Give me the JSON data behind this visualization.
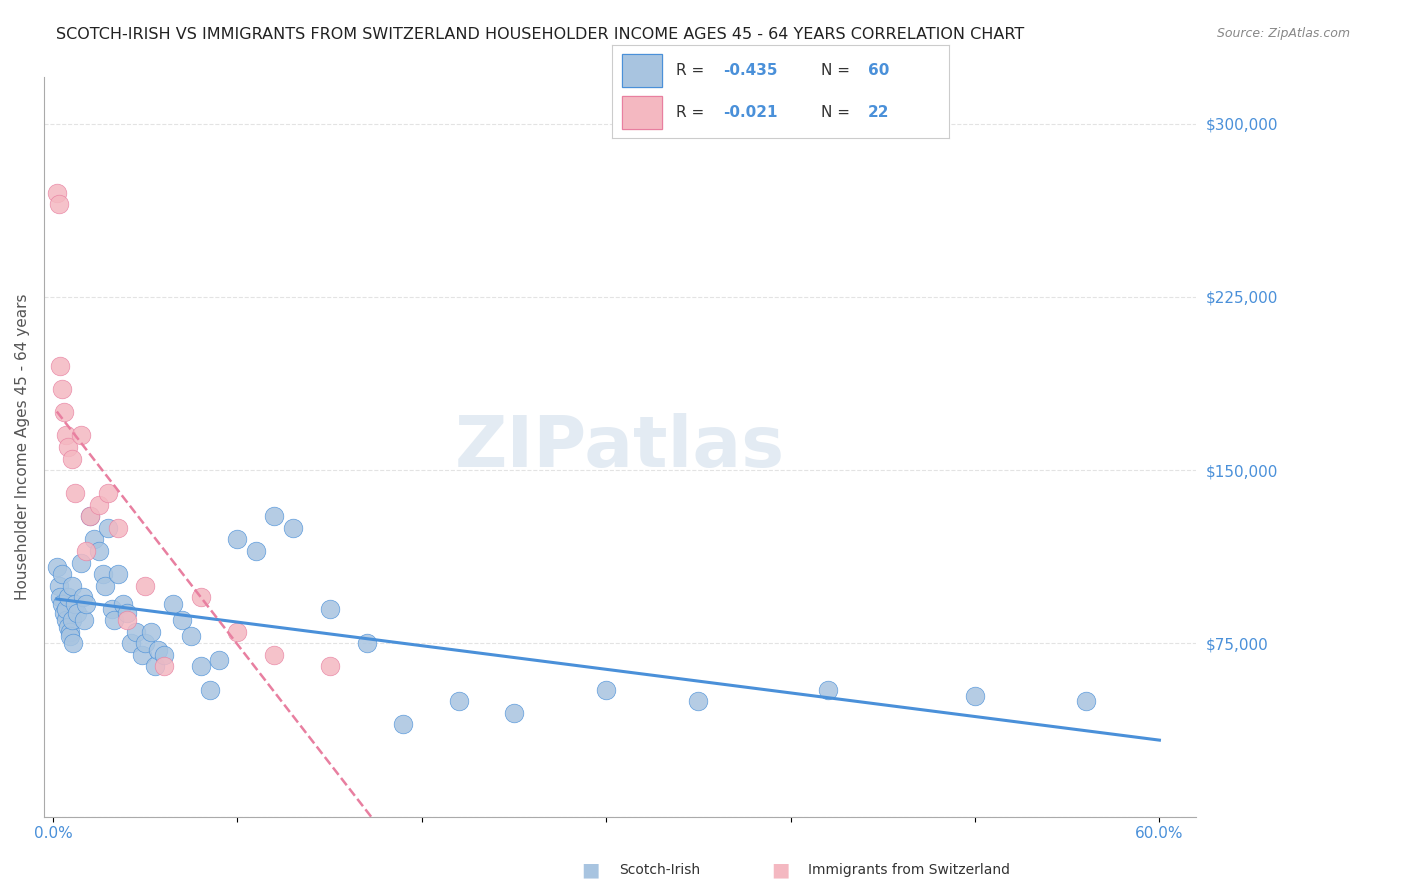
{
  "title": "SCOTCH-IRISH VS IMMIGRANTS FROM SWITZERLAND HOUSEHOLDER INCOME AGES 45 - 64 YEARS CORRELATION CHART",
  "source": "Source: ZipAtlas.com",
  "xlabel": "",
  "ylabel": "Householder Income Ages 45 - 64 years",
  "xlim": [
    0.0,
    0.6
  ],
  "ylim": [
    0,
    320000
  ],
  "yticks": [
    0,
    75000,
    150000,
    225000,
    300000
  ],
  "xticks": [
    0.0,
    0.1,
    0.2,
    0.3,
    0.4,
    0.5,
    0.6
  ],
  "xtick_labels": [
    "0.0%",
    "",
    "",
    "",
    "",
    "",
    "60.0%"
  ],
  "background_color": "#ffffff",
  "grid_color": "#dddddd",
  "scotch_irish_color": "#a8c4e0",
  "swiss_color": "#f4b8c1",
  "scotch_irish_line_color": "#4a90d9",
  "swiss_line_color": "#e87fa0",
  "watermark_color": "#c8d8e8",
  "legend_r1": "R = -0.435",
  "legend_n1": "N = 60",
  "legend_r2": "R = -0.021",
  "legend_n2": "N = 22",
  "scotch_irish_label": "Scotch-Irish",
  "swiss_label": "Immigrants from Switzerland",
  "title_color": "#222222",
  "axis_label_color": "#555555",
  "tick_color": "#4a90d9",
  "scotch_irish_x": [
    0.002,
    0.003,
    0.004,
    0.005,
    0.005,
    0.006,
    0.007,
    0.007,
    0.008,
    0.008,
    0.009,
    0.009,
    0.01,
    0.01,
    0.011,
    0.012,
    0.013,
    0.015,
    0.016,
    0.017,
    0.018,
    0.02,
    0.022,
    0.025,
    0.027,
    0.028,
    0.03,
    0.032,
    0.033,
    0.035,
    0.038,
    0.04,
    0.042,
    0.045,
    0.048,
    0.05,
    0.053,
    0.055,
    0.057,
    0.06,
    0.065,
    0.07,
    0.075,
    0.08,
    0.085,
    0.09,
    0.1,
    0.11,
    0.12,
    0.13,
    0.15,
    0.17,
    0.19,
    0.22,
    0.25,
    0.3,
    0.35,
    0.42,
    0.5,
    0.56
  ],
  "scotch_irish_y": [
    108000,
    100000,
    95000,
    92000,
    105000,
    88000,
    85000,
    90000,
    95000,
    82000,
    80000,
    78000,
    100000,
    85000,
    75000,
    92000,
    88000,
    110000,
    95000,
    85000,
    92000,
    130000,
    120000,
    115000,
    105000,
    100000,
    125000,
    90000,
    85000,
    105000,
    92000,
    88000,
    75000,
    80000,
    70000,
    75000,
    80000,
    65000,
    72000,
    70000,
    92000,
    85000,
    78000,
    65000,
    55000,
    68000,
    120000,
    115000,
    130000,
    125000,
    90000,
    75000,
    40000,
    50000,
    45000,
    55000,
    50000,
    55000,
    52000,
    50000
  ],
  "swiss_x": [
    0.002,
    0.003,
    0.004,
    0.005,
    0.006,
    0.007,
    0.008,
    0.01,
    0.012,
    0.015,
    0.018,
    0.02,
    0.025,
    0.03,
    0.035,
    0.04,
    0.05,
    0.06,
    0.08,
    0.1,
    0.12,
    0.15
  ],
  "swiss_y": [
    270000,
    265000,
    195000,
    185000,
    175000,
    165000,
    160000,
    155000,
    140000,
    165000,
    115000,
    130000,
    135000,
    140000,
    125000,
    85000,
    100000,
    65000,
    95000,
    80000,
    70000,
    65000
  ]
}
